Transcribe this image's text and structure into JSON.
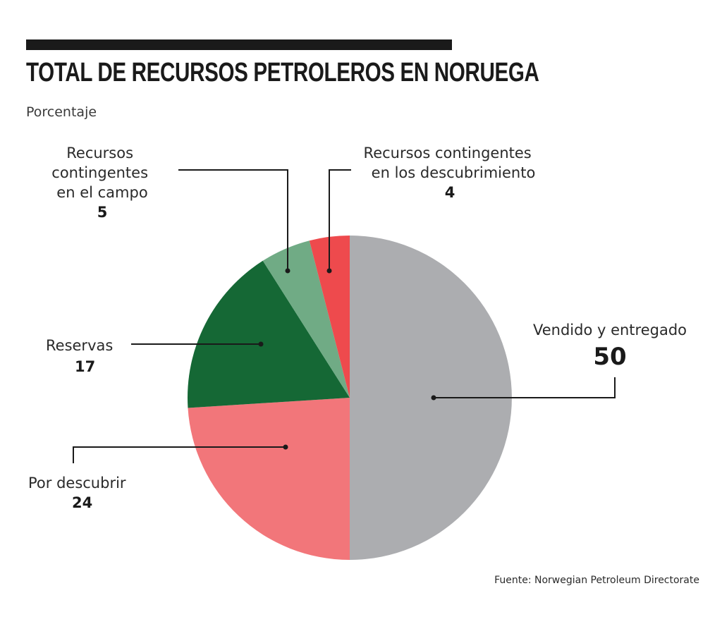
{
  "chart_data": {
    "type": "pie",
    "title": "TOTAL DE RECURSOS PETROLEROS EN NORUEGA",
    "subtitle": "Porcentaje",
    "source": "Fuente: Norwegian Petroleum Directorate",
    "slices": [
      {
        "label": "Vendido y entregado",
        "value": 50,
        "color": "#acadb0"
      },
      {
        "label": "Por descubrir",
        "value": 24,
        "color": "#f2767a"
      },
      {
        "label": "Reservas",
        "value": 17,
        "color": "#156835"
      },
      {
        "label": "Recursos contingentes en el campo",
        "value": 5,
        "color": "#70ab85"
      },
      {
        "label": "Recursos contingentes en los descubrimiento",
        "value": 4,
        "color": "#ee4a4d"
      }
    ]
  }
}
